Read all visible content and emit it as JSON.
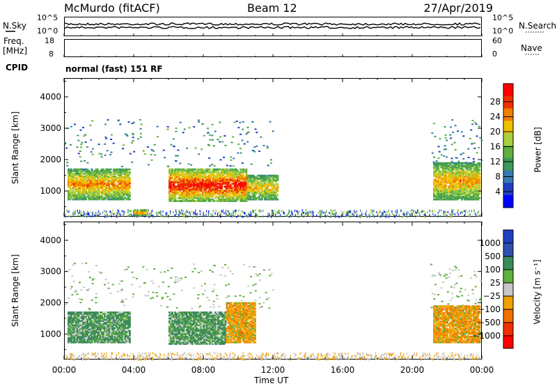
{
  "header": {
    "station": "McMurdo (fitACF)",
    "beam": "Beam 12",
    "date": "27/Apr/2019"
  },
  "noise_panel": {
    "left_label": "N.Sky",
    "right_label": "N.Search",
    "left_ticks": [
      "10^5",
      "10^0"
    ],
    "right_ticks": [
      "10^5",
      "10^0"
    ]
  },
  "freq_panel": {
    "left_label_1": "Freq.",
    "left_label_2": "[MHz]",
    "right_label": "Nave",
    "left_ticks": [
      "18",
      "8"
    ],
    "right_ticks": [
      "60",
      "0"
    ]
  },
  "cpid_panel": {
    "label": "CPID",
    "text": "normal (fast) 151 RF"
  },
  "power_panel": {
    "ylabel": "Slant Range [km]",
    "y_ticks": [
      "4000",
      "3000",
      "2000",
      "1000"
    ],
    "colorbar_label": "Power [dB]",
    "colorbar_ticks": [
      "28",
      "24",
      "20",
      "16",
      "12",
      "8",
      "4"
    ]
  },
  "velocity_panel": {
    "ylabel": "Slant Range [km]",
    "y_ticks": [
      "4000",
      "3000",
      "2000",
      "1000"
    ],
    "colorbar_label": "Velocity [m s⁻¹]",
    "colorbar_ticks": [
      "1000",
      "500",
      "100",
      "25",
      "−25",
      "−100",
      "−500",
      "−1000"
    ]
  },
  "x_axis": {
    "label": "Time UT",
    "ticks": [
      "00:00",
      "04:00",
      "08:00",
      "12:00",
      "16:00",
      "20:00",
      "00:00"
    ]
  },
  "chart_data": [
    {
      "type": "heatmap",
      "title": "Power [dB]",
      "xlabel": "Time UT",
      "ylabel": "Slant Range [km]",
      "xlim": [
        0,
        24
      ],
      "ylim": [
        180,
        4600
      ],
      "clim": [
        0,
        30
      ],
      "regions": [
        {
          "t0": 0.2,
          "t1": 3.8,
          "r0": 700,
          "r1": 1700,
          "value": 22
        },
        {
          "t0": 6.0,
          "t1": 10.5,
          "r0": 650,
          "r1": 1700,
          "value": 27
        },
        {
          "t0": 10.5,
          "t1": 12.3,
          "r0": 700,
          "r1": 1500,
          "value": 20
        },
        {
          "t0": 21.2,
          "t1": 23.9,
          "r0": 700,
          "r1": 1900,
          "value": 21
        },
        {
          "t0": 4.0,
          "t1": 4.8,
          "r0": 200,
          "r1": 400,
          "value": 26
        }
      ]
    },
    {
      "type": "heatmap",
      "title": "Velocity [m s⁻¹]",
      "xlabel": "Time UT",
      "ylabel": "Slant Range [km]",
      "xlim": [
        0,
        24
      ],
      "ylim": [
        180,
        4600
      ],
      "clim": [
        -1000,
        1000
      ],
      "regions": [
        {
          "t0": 0.2,
          "t1": 3.8,
          "r0": 700,
          "r1": 1700,
          "value": 100
        },
        {
          "t0": 6.0,
          "t1": 9.3,
          "r0": 650,
          "r1": 1700,
          "value": 100
        },
        {
          "t0": 9.3,
          "t1": 11.0,
          "r0": 700,
          "r1": 2000,
          "value": -100
        },
        {
          "t0": 21.2,
          "t1": 23.9,
          "r0": 700,
          "r1": 1900,
          "value": -100
        }
      ]
    }
  ]
}
